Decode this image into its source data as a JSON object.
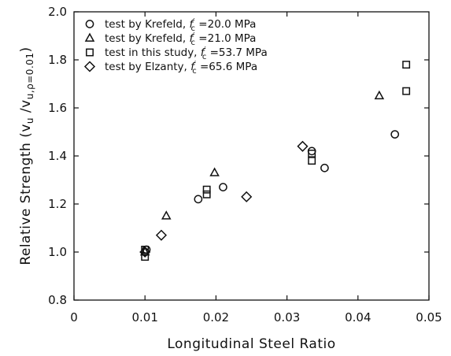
{
  "chart_data": {
    "type": "scatter",
    "title": "",
    "xlabel": "Longitudinal Steel Ratio",
    "ylabel": {
      "prefix": "Relative Strength  (v",
      "num_sub": "u",
      "mid": " /v",
      "den_sub": "u,ρ=0.01",
      "suffix": ")"
    },
    "xlim": [
      0,
      0.05
    ],
    "ylim": [
      0.8,
      2.0
    ],
    "xticks": [
      "0",
      "0.01",
      "0.02",
      "0.03",
      "0.04",
      "0.05"
    ],
    "yticks": [
      "0.8",
      "1.0",
      "1.2",
      "1.4",
      "1.6",
      "1.8",
      "2.0"
    ],
    "grid": false,
    "legend_position": "top-left",
    "series": [
      {
        "marker": "circle",
        "legend": {
          "source": "test  by  Krefeld,",
          "fc_value": "=20.0  MPa"
        },
        "points": [
          {
            "x": 0.01,
            "y": 1.0
          },
          {
            "x": 0.0102,
            "y": 1.01
          },
          {
            "x": 0.0175,
            "y": 1.22
          },
          {
            "x": 0.021,
            "y": 1.27
          },
          {
            "x": 0.0335,
            "y": 1.42
          },
          {
            "x": 0.0353,
            "y": 1.35
          },
          {
            "x": 0.0452,
            "y": 1.49
          }
        ]
      },
      {
        "marker": "triangle",
        "legend": {
          "source": "test  by  Krefeld,",
          "fc_value": "=21.0  MPa"
        },
        "points": [
          {
            "x": 0.01,
            "y": 1.0
          },
          {
            "x": 0.013,
            "y": 1.15
          },
          {
            "x": 0.0198,
            "y": 1.33
          },
          {
            "x": 0.043,
            "y": 1.65
          }
        ]
      },
      {
        "marker": "square",
        "legend": {
          "source": "test  in  this  study,",
          "fc_value": "=53.7  MPa"
        },
        "points": [
          {
            "x": 0.01,
            "y": 0.98
          },
          {
            "x": 0.01,
            "y": 1.01
          },
          {
            "x": 0.0187,
            "y": 1.24
          },
          {
            "x": 0.0187,
            "y": 1.26
          },
          {
            "x": 0.0335,
            "y": 1.38
          },
          {
            "x": 0.0335,
            "y": 1.41
          },
          {
            "x": 0.0468,
            "y": 1.67
          },
          {
            "x": 0.0468,
            "y": 1.78
          }
        ]
      },
      {
        "marker": "diamond",
        "legend": {
          "source": "test  by  Elzanty,",
          "fc_value": "=65.6  MPa"
        },
        "points": [
          {
            "x": 0.01,
            "y": 1.0
          },
          {
            "x": 0.0123,
            "y": 1.07
          },
          {
            "x": 0.0243,
            "y": 1.23
          },
          {
            "x": 0.0322,
            "y": 1.44
          }
        ]
      }
    ],
    "fc_symbol": "f",
    "fc_sub": "c",
    "fc_prime": "′"
  }
}
